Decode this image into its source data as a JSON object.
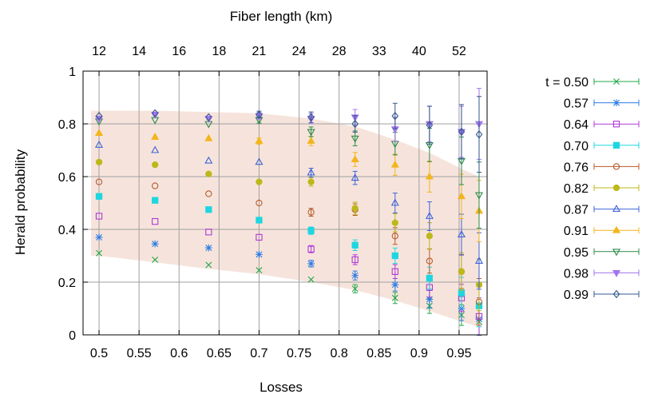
{
  "chart_data": {
    "type": "scatter",
    "title": "",
    "xlabel": "Losses",
    "ylabel": "Herald probability",
    "x2label": "Fiber length (km)",
    "xlim": [
      0.48,
      0.985
    ],
    "ylim": [
      0,
      1
    ],
    "x_ticks": [
      0.5,
      0.55,
      0.6,
      0.65,
      0.7,
      0.75,
      0.8,
      0.85,
      0.9,
      0.95
    ],
    "y_ticks": [
      0,
      0.2,
      0.4,
      0.6,
      0.8,
      1
    ],
    "top_ticks": [
      {
        "label": "12",
        "loss": 0.5
      },
      {
        "label": "14",
        "loss": 0.55
      },
      {
        "label": "16",
        "loss": 0.6
      },
      {
        "label": "18",
        "loss": 0.65
      },
      {
        "label": "21",
        "loss": 0.7
      },
      {
        "label": "24",
        "loss": 0.75
      },
      {
        "label": "28",
        "loss": 0.8
      },
      {
        "label": "33",
        "loss": 0.85
      },
      {
        "label": "40",
        "loss": 0.9
      },
      {
        "label": "52",
        "loss": 0.95
      }
    ],
    "grid": true,
    "legend_position": "right",
    "x_groups": [
      0.5,
      0.57,
      0.637,
      0.7,
      0.765,
      0.82,
      0.87,
      0.913,
      0.953,
      0.975
    ],
    "band": {
      "upper": [
        0.85,
        0.85,
        0.845,
        0.84,
        0.82,
        0.79,
        0.74,
        0.69,
        0.63,
        0.6
      ],
      "lower": [
        0.3,
        0.275,
        0.25,
        0.23,
        0.2,
        0.17,
        0.13,
        0.09,
        0.05,
        0.03
      ]
    },
    "series": [
      {
        "name": "t = 0.50",
        "color": "#22a84a",
        "marker": "x",
        "y": [
          0.31,
          0.285,
          0.265,
          0.245,
          0.21,
          0.175,
          0.14,
          0.11,
          0.075,
          0.05
        ]
      },
      {
        "name": "0.57",
        "color": "#2d7be3",
        "marker": "star",
        "y": [
          0.37,
          0.345,
          0.33,
          0.305,
          0.27,
          0.225,
          0.19,
          0.135,
          0.1,
          0.06
        ]
      },
      {
        "name": "0.64",
        "color": "#b03ad6",
        "marker": "square",
        "y": [
          0.45,
          0.43,
          0.39,
          0.37,
          0.325,
          0.285,
          0.24,
          0.18,
          0.14,
          0.07
        ]
      },
      {
        "name": "0.70",
        "color": "#1ed6e0",
        "marker": "square-filled",
        "y": [
          0.525,
          0.51,
          0.475,
          0.435,
          0.395,
          0.34,
          0.3,
          0.215,
          0.16,
          0.11
        ]
      },
      {
        "name": "0.76",
        "color": "#b85a2a",
        "marker": "circle",
        "y": [
          0.58,
          0.565,
          0.535,
          0.5,
          0.465,
          0.475,
          0.375,
          0.28,
          0.24,
          0.125
        ]
      },
      {
        "name": "0.82",
        "color": "#bdb81a",
        "marker": "circle-filled",
        "y": [
          0.655,
          0.645,
          0.61,
          0.58,
          0.58,
          0.48,
          0.425,
          0.375,
          0.24,
          0.19
        ]
      },
      {
        "name": "0.87",
        "color": "#3f63d8",
        "marker": "triangle",
        "y": [
          0.72,
          0.7,
          0.66,
          0.655,
          0.615,
          0.595,
          0.5,
          0.45,
          0.38,
          0.28
        ]
      },
      {
        "name": "0.91",
        "color": "#f2b51c",
        "marker": "triangle-filled",
        "y": [
          0.765,
          0.75,
          0.745,
          0.735,
          0.735,
          0.665,
          0.645,
          0.6,
          0.525,
          0.47
        ]
      },
      {
        "name": "0.95",
        "color": "#2e8a4a",
        "marker": "triangle-down",
        "y": [
          0.81,
          0.815,
          0.8,
          0.815,
          0.77,
          0.745,
          0.725,
          0.72,
          0.66,
          0.53
        ]
      },
      {
        "name": "0.98",
        "color": "#a274ee",
        "marker": "triangle-down-filled",
        "y": [
          0.82,
          0.835,
          0.82,
          0.83,
          0.82,
          0.825,
          0.78,
          0.8,
          0.77,
          0.8
        ]
      },
      {
        "name": "0.99",
        "color": "#35588e",
        "marker": "diamond",
        "y": [
          0.83,
          0.84,
          0.825,
          0.835,
          0.825,
          0.8,
          0.83,
          0.795,
          0.77,
          0.76
        ]
      }
    ]
  }
}
